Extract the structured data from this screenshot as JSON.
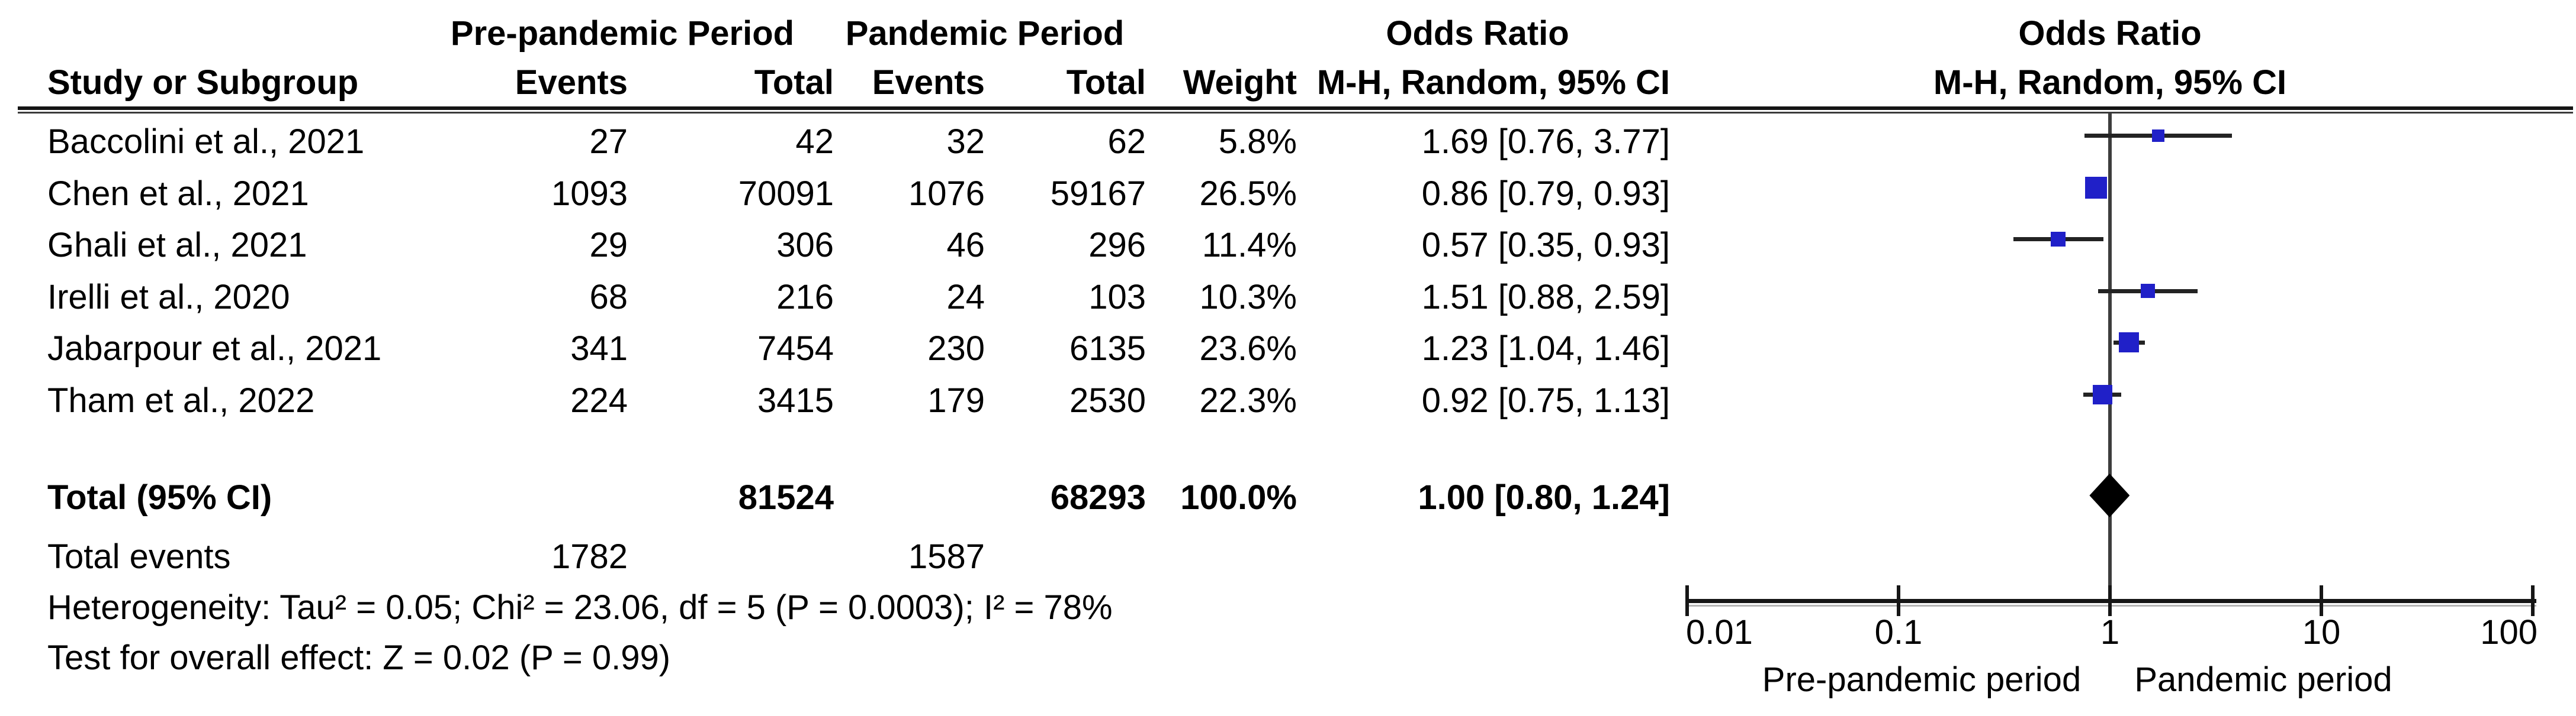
{
  "headers": {
    "group_pre": "Pre-pandemic Period",
    "group_pan": "Pandemic Period",
    "or_title": "Odds Ratio",
    "method": "M-H, Random, 95% CI",
    "study": "Study or Subgroup",
    "events": "Events",
    "total": "Total",
    "weight": "Weight"
  },
  "chart_data": {
    "type": "forest",
    "effect_measure": "Odds Ratio",
    "model": "M-H, Random, 95% CI",
    "x_axis": {
      "scale": "log",
      "ticks": [
        0.01,
        0.1,
        1,
        10,
        100
      ],
      "tick_labels": [
        "0.01",
        "0.1",
        "1",
        "10",
        "100"
      ],
      "xlim": [
        0.01,
        100
      ],
      "reference_line": 1
    },
    "studies": [
      {
        "study": "Baccolini et al., 2021",
        "events_pre": "27",
        "total_pre": "42",
        "events_pan": "32",
        "total_pan": "62",
        "weight": "5.8%",
        "or_text": "1.69 [0.76, 3.77]",
        "or": 1.69,
        "ci_low": 0.76,
        "ci_high": 3.77
      },
      {
        "study": "Chen et al., 2021",
        "events_pre": "1093",
        "total_pre": "70091",
        "events_pan": "1076",
        "total_pan": "59167",
        "weight": "26.5%",
        "or_text": "0.86 [0.79, 0.93]",
        "or": 0.86,
        "ci_low": 0.79,
        "ci_high": 0.93
      },
      {
        "study": "Ghali et al., 2021",
        "events_pre": "29",
        "total_pre": "306",
        "events_pan": "46",
        "total_pan": "296",
        "weight": "11.4%",
        "or_text": "0.57 [0.35, 0.93]",
        "or": 0.57,
        "ci_low": 0.35,
        "ci_high": 0.93
      },
      {
        "study": "Irelli et al., 2020",
        "events_pre": "68",
        "total_pre": "216",
        "events_pan": "24",
        "total_pan": "103",
        "weight": "10.3%",
        "or_text": "1.51 [0.88, 2.59]",
        "or": 1.51,
        "ci_low": 0.88,
        "ci_high": 2.59
      },
      {
        "study": "Jabarpour et al., 2021",
        "events_pre": "341",
        "total_pre": "7454",
        "events_pan": "230",
        "total_pan": "6135",
        "weight": "23.6%",
        "or_text": "1.23 [1.04, 1.46]",
        "or": 1.23,
        "ci_low": 1.04,
        "ci_high": 1.46
      },
      {
        "study": "Tham et al., 2022",
        "events_pre": "224",
        "total_pre": "3415",
        "events_pan": "179",
        "total_pan": "2530",
        "weight": "22.3%",
        "or_text": "0.92 [0.75, 1.13]",
        "or": 0.92,
        "ci_low": 0.75,
        "ci_high": 1.13
      }
    ],
    "total": {
      "label": "Total (95% CI)",
      "total_pre": "81524",
      "total_pan": "68293",
      "weight": "100.0%",
      "or_text": "1.00 [0.80, 1.24]",
      "or": 1.0,
      "ci_low": 0.8,
      "ci_high": 1.24
    },
    "total_events": {
      "label": "Total events",
      "events_pre": "1782",
      "events_pan": "1587"
    },
    "footnotes": {
      "heterogeneity": "Heterogeneity: Tau² = 0.05; Chi² = 23.06, df = 5 (P = 0.0003); I² = 78%",
      "overall_effect": "Test for overall effect: Z = 0.02 (P = 0.99)"
    },
    "legend": {
      "left": "Pre-pandemic period",
      "right": "Pandemic period"
    },
    "colors": {
      "square": "#2020c8",
      "diamond": "#000000",
      "ci_line": "#232323",
      "axis": "#161616",
      "reference_line": "#3d3d3d"
    }
  }
}
